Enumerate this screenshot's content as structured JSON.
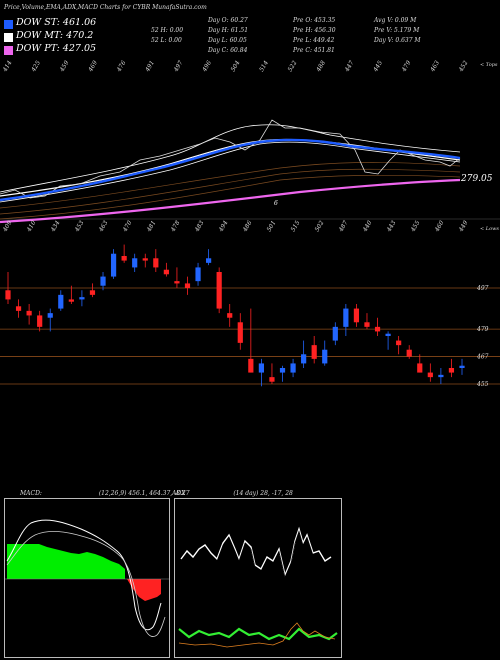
{
  "header": {
    "title": "Price,Volume,EMA,ADX,MACD Charts for CYBR MunafaSutra.com"
  },
  "legend": [
    {
      "label": "DOW ST: 461.06",
      "color": "#1e5cff"
    },
    {
      "label": "DOW MT: 470.2",
      "color": "#ffffff"
    },
    {
      "label": "DOW PT: 427.05",
      "color": "#ee66ee"
    }
  ],
  "stats": {
    "col1": [
      "Day O: 60.27",
      "Day H: 61.51",
      "Day L: 60.05",
      "Day C: 60.84"
    ],
    "col2": [
      "52 H: 0.00",
      "52 L: 0.00"
    ],
    "col3": [
      "Pre O: 453.35",
      "Pre H: 456.30",
      "Pre L: 449.42",
      "Pre C: 451.81"
    ],
    "col4": [
      "Avg V: 0.09 M",
      "Pre V: 5.179 M",
      "Day V: 0.637 M"
    ]
  },
  "ema_panel": {
    "top_labels": [
      "414",
      "425",
      "459",
      "469",
      "476",
      "491",
      "497",
      "496",
      "504",
      "514",
      "522",
      "488",
      "447",
      "445",
      "479",
      "463",
      "452"
    ],
    "top_axis_label": "< Tops",
    "last_value": "279.05",
    "marker": "6",
    "bottom_labels": [
      "409",
      "410",
      "434",
      "453",
      "463",
      "470",
      "481",
      "478",
      "483",
      "494",
      "486",
      "501",
      "515",
      "502",
      "487",
      "440",
      "443",
      "455",
      "460",
      "449"
    ],
    "bottom_axis_label": "< Lows"
  },
  "price_panel": {
    "levels": [
      {
        "label": "497",
        "value": 497
      },
      {
        "label": "479",
        "value": 479
      },
      {
        "label": "467",
        "value": 467
      },
      {
        "label": "455",
        "value": 455
      }
    ]
  },
  "macd_panel": {
    "label": "MACD:",
    "values": "(12,26,9) 456.1, 464.37, -8.27"
  },
  "adx_panel": {
    "label": "ADX",
    "values": "(14 day) 28, -17, 28"
  },
  "chart_data": {
    "type": "candlestick",
    "series": [
      {
        "name": "candles",
        "ohlc": [
          [
            496,
            504,
            490,
            492
          ],
          [
            489,
            492,
            484,
            487
          ],
          [
            487,
            490,
            481,
            485
          ],
          [
            485,
            487,
            478,
            480
          ],
          [
            484,
            488,
            478,
            486
          ],
          [
            488,
            496,
            487,
            494
          ],
          [
            492,
            498,
            490,
            491
          ],
          [
            492,
            496,
            489,
            493
          ],
          [
            496,
            499,
            493,
            494
          ],
          [
            498,
            504,
            496,
            502
          ],
          [
            502,
            514,
            501,
            512
          ],
          [
            511,
            516,
            508,
            509
          ],
          [
            506,
            512,
            504,
            510
          ],
          [
            510,
            512,
            506,
            509
          ],
          [
            510,
            514,
            504,
            506
          ],
          [
            505,
            508,
            502,
            503
          ],
          [
            500,
            506,
            497,
            499
          ],
          [
            499,
            502,
            494,
            497
          ],
          [
            500,
            508,
            498,
            506
          ],
          [
            508,
            514,
            507,
            510
          ],
          [
            504,
            506,
            486,
            488
          ],
          [
            486,
            490,
            480,
            484
          ],
          [
            482,
            486,
            470,
            473
          ],
          [
            466,
            488,
            460,
            460
          ],
          [
            460,
            466,
            454,
            464
          ],
          [
            458,
            464,
            455,
            456
          ],
          [
            460,
            463,
            456,
            462
          ],
          [
            460,
            466,
            458,
            464
          ],
          [
            464,
            474,
            462,
            468
          ],
          [
            472,
            476,
            464,
            466
          ],
          [
            464,
            474,
            463,
            470
          ],
          [
            474,
            482,
            472,
            480
          ],
          [
            480,
            490,
            476,
            488
          ],
          [
            488,
            490,
            480,
            482
          ],
          [
            482,
            486,
            479,
            480
          ],
          [
            480,
            484,
            476,
            478
          ],
          [
            476,
            478,
            470,
            477
          ],
          [
            474,
            476,
            468,
            472
          ],
          [
            470,
            472,
            466,
            467
          ],
          [
            464,
            468,
            460,
            460
          ],
          [
            460,
            464,
            456,
            458
          ],
          [
            458,
            462,
            455,
            459
          ],
          [
            462,
            466,
            458,
            460
          ],
          [
            462,
            466,
            459,
            463
          ]
        ]
      }
    ],
    "levels": [
      497,
      479,
      467,
      455
    ]
  }
}
